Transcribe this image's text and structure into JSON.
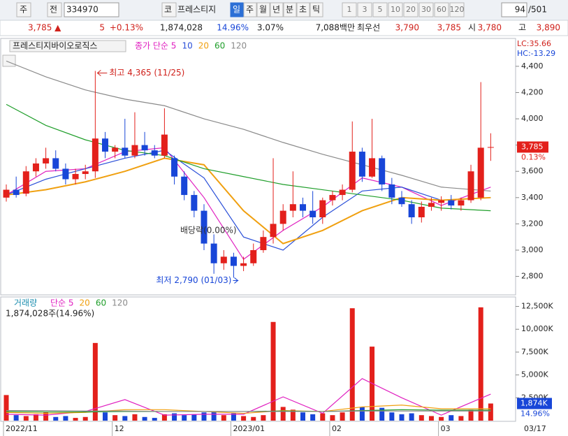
{
  "toolbar": {
    "market": "주",
    "mode": "전",
    "code": "334970",
    "exchange": "코",
    "name": "프레스티지",
    "periods": [
      "일",
      "주",
      "월",
      "년",
      "분",
      "초",
      "틱"
    ],
    "intervals": [
      "1",
      "3",
      "5",
      "10",
      "20",
      "30",
      "60",
      "120"
    ],
    "count": "94",
    "total": "/501"
  },
  "quote": {
    "price": "3,785 ▲",
    "change": "5",
    "change_pct": "+0.13%",
    "volume": "1,874,028",
    "volume_pct": "14.96%",
    "turnover_pct": "3.07%",
    "amount": "7,088백만",
    "best_label": "최우선",
    "ask": "3,790",
    "bid": "3,785",
    "open_label": "시",
    "open": "3,780",
    "high_label": "고",
    "high": "3,890"
  },
  "chart_data": [
    {
      "type": "candlestick",
      "title": "프레스티지바이오로직스",
      "up_color": "#e3201b",
      "down_color": "#1846d8",
      "candles": [
        [
          3400,
          3500,
          3370,
          3460
        ],
        [
          3460,
          3560,
          3400,
          3420
        ],
        [
          3430,
          3640,
          3410,
          3600
        ],
        [
          3600,
          3700,
          3560,
          3660
        ],
        [
          3660,
          3780,
          3620,
          3700
        ],
        [
          3700,
          3760,
          3600,
          3620
        ],
        [
          3620,
          3660,
          3500,
          3540
        ],
        [
          3540,
          3620,
          3500,
          3580
        ],
        [
          3580,
          3650,
          3540,
          3600
        ],
        [
          3600,
          4365,
          3550,
          3850
        ],
        [
          3850,
          3900,
          3700,
          3750
        ],
        [
          3750,
          3800,
          3700,
          3780
        ],
        [
          3780,
          4000,
          3700,
          3720
        ],
        [
          3720,
          4050,
          3700,
          3800
        ],
        [
          3800,
          3900,
          3720,
          3760
        ],
        [
          3760,
          3800,
          3700,
          3720
        ],
        [
          3720,
          4080,
          3700,
          3880
        ],
        [
          3700,
          3720,
          3500,
          3560
        ],
        [
          3560,
          3600,
          3380,
          3420
        ],
        [
          3420,
          3450,
          3250,
          3300
        ],
        [
          3300,
          3350,
          3000,
          3050
        ],
        [
          3050,
          3120,
          2820,
          2900
        ],
        [
          2900,
          3000,
          2850,
          2950
        ],
        [
          2950,
          2980,
          2790,
          2880
        ],
        [
          2880,
          2950,
          2840,
          2900
        ],
        [
          2900,
          3050,
          2880,
          3000
        ],
        [
          3000,
          3150,
          2980,
          3100
        ],
        [
          3100,
          3700,
          3050,
          3200
        ],
        [
          3200,
          3350,
          3150,
          3300
        ],
        [
          3300,
          3600,
          3250,
          3350
        ],
        [
          3350,
          3400,
          3250,
          3300
        ],
        [
          3300,
          3450,
          3200,
          3250
        ],
        [
          3250,
          3400,
          3200,
          3380
        ],
        [
          3380,
          3450,
          3340,
          3420
        ],
        [
          3420,
          3500,
          3380,
          3460
        ],
        [
          3460,
          3980,
          3440,
          3750
        ],
        [
          3750,
          3780,
          3520,
          3560
        ],
        [
          3560,
          4000,
          3550,
          3700
        ],
        [
          3700,
          3720,
          3450,
          3500
        ],
        [
          3500,
          3550,
          3350,
          3400
        ],
        [
          3400,
          3450,
          3330,
          3350
        ],
        [
          3350,
          3380,
          3200,
          3250
        ],
        [
          3250,
          3370,
          3210,
          3330
        ],
        [
          3330,
          3400,
          3300,
          3360
        ],
        [
          3360,
          3410,
          3300,
          3380
        ],
        [
          3380,
          3420,
          3310,
          3340
        ],
        [
          3340,
          3400,
          3300,
          3380
        ],
        [
          3380,
          3650,
          3360,
          3600
        ],
        [
          3400,
          4280,
          3380,
          3780
        ],
        [
          3780,
          3890,
          3680,
          3785
        ]
      ],
      "ylim": [
        2670,
        4575
      ],
      "yticks": [
        {
          "value": 2800,
          "label": "2,800"
        },
        {
          "value": 3000,
          "label": "3,000"
        },
        {
          "value": 3200,
          "label": "3,200"
        },
        {
          "value": 3400,
          "label": "3,400"
        },
        {
          "value": 3600,
          "label": "3,600"
        },
        {
          "value": 3800,
          "label": "3,800"
        },
        {
          "value": 4000,
          "label": "4,000"
        },
        {
          "value": 4200,
          "label": "4,200"
        },
        {
          "value": 4400,
          "label": "4,400"
        }
      ],
      "series": [
        {
          "name": "종가 단순 5",
          "color": "#e020c0",
          "x": [
            0,
            4,
            8,
            12,
            16,
            20,
            24,
            28,
            32,
            36,
            40,
            44,
            49
          ],
          "values": [
            3420,
            3600,
            3620,
            3750,
            3780,
            3400,
            2930,
            3150,
            3330,
            3550,
            3480,
            3340,
            3480
          ]
        },
        {
          "name": "10",
          "color": "#2a4fd8",
          "x": [
            0,
            4,
            8,
            12,
            16,
            20,
            24,
            28,
            32,
            36,
            40,
            44,
            49
          ],
          "values": [
            3420,
            3540,
            3620,
            3700,
            3760,
            3550,
            3100,
            3000,
            3250,
            3450,
            3480,
            3380,
            3400
          ]
        },
        {
          "name": "20",
          "color": "#f0a010",
          "x": [
            0,
            4,
            8,
            12,
            16,
            20,
            24,
            28,
            32,
            36,
            40,
            44,
            49
          ],
          "values": [
            3420,
            3460,
            3520,
            3600,
            3700,
            3650,
            3300,
            3050,
            3150,
            3300,
            3400,
            3380,
            3400
          ]
        },
        {
          "name": "60",
          "color": "#1f9e2a",
          "x": [
            0,
            4,
            8,
            12,
            16,
            20,
            24,
            28,
            32,
            36,
            40,
            44,
            49
          ],
          "values": [
            4110,
            3950,
            3840,
            3760,
            3720,
            3620,
            3560,
            3500,
            3460,
            3420,
            3380,
            3320,
            3300
          ]
        },
        {
          "name": "120",
          "color": "#8a8a8a",
          "x": [
            0,
            4,
            8,
            12,
            16,
            20,
            24,
            28,
            32,
            36,
            40,
            44,
            49
          ],
          "values": [
            4440,
            4320,
            4220,
            4150,
            4100,
            4000,
            3920,
            3820,
            3730,
            3650,
            3570,
            3480,
            3450
          ]
        }
      ],
      "annotations": {
        "high": "최고 4,365 (11/25)",
        "low": "최저 2,790 (01/03)",
        "dividend": "배당락(0.00%)"
      },
      "indicators": [
        "LC:35.66",
        "HC:-13.29"
      ],
      "last": {
        "value": 3785,
        "label": "3,785",
        "change": "0.13%"
      }
    },
    {
      "type": "bar",
      "title": "거래량",
      "subtitle": "1,874,028주(14.96%)",
      "categories": [
        "2022/11",
        null,
        null,
        null,
        null,
        null,
        null,
        null,
        null,
        null,
        null,
        "12",
        null,
        null,
        null,
        null,
        null,
        null,
        null,
        null,
        null,
        null,
        null,
        "2023/01",
        null,
        null,
        null,
        null,
        null,
        null,
        null,
        null,
        null,
        "02",
        null,
        null,
        null,
        null,
        null,
        null,
        null,
        null,
        null,
        null,
        "03",
        null,
        null,
        null,
        null,
        null
      ],
      "values": [
        2800,
        600,
        500,
        700,
        900,
        400,
        500,
        300,
        400,
        8500,
        900,
        600,
        500,
        700,
        400,
        300,
        700,
        800,
        600,
        700,
        900,
        1000,
        600,
        800,
        500,
        400,
        600,
        10800,
        1500,
        1200,
        900,
        700,
        800,
        600,
        900,
        12300,
        1500,
        8100,
        1400,
        900,
        700,
        800,
        600,
        500,
        400,
        600,
        500,
        1200,
        12400,
        1874
      ],
      "ylim": [
        0,
        13000
      ],
      "yticks": [
        {
          "value": 2500,
          "label": "2,500K"
        },
        {
          "value": 5000,
          "label": "5,000K"
        },
        {
          "value": 7500,
          "label": "7,500K"
        },
        {
          "value": 10000,
          "label": "10,000K"
        },
        {
          "value": 12500,
          "label": "12,500K"
        }
      ],
      "series": [
        {
          "name": "단순 5",
          "color": "#e020c0",
          "x": [
            0,
            4,
            8,
            12,
            16,
            20,
            24,
            28,
            32,
            36,
            40,
            44,
            49
          ],
          "values": [
            700,
            600,
            1000,
            2300,
            600,
            700,
            700,
            2600,
            800,
            4600,
            2500,
            600,
            2900
          ]
        },
        {
          "name": "20",
          "color": "#f0a010",
          "x": [
            0,
            4,
            8,
            12,
            16,
            20,
            24,
            28,
            32,
            36,
            40,
            44,
            49
          ],
          "values": [
            900,
            800,
            900,
            1200,
            1200,
            1000,
            800,
            1100,
            1000,
            1500,
            1700,
            1300,
            1300
          ]
        },
        {
          "name": "60",
          "color": "#1f9e2a",
          "x": [
            0,
            4,
            8,
            12,
            16,
            20,
            24,
            28,
            32,
            36,
            40,
            44,
            49
          ],
          "values": [
            1000,
            950,
            950,
            1000,
            1000,
            1000,
            1000,
            1050,
            1000,
            1100,
            1200,
            1150,
            1150
          ]
        },
        {
          "name": "120",
          "color": "#8a8a8a",
          "x": [
            0,
            4,
            8,
            12,
            16,
            20,
            24,
            28,
            32,
            36,
            40,
            44,
            49
          ],
          "values": [
            1100,
            1100,
            1050,
            1050,
            1000,
            1000,
            1000,
            1000,
            1000,
            1050,
            1050,
            1050,
            1050
          ]
        }
      ],
      "last": {
        "value": 1874,
        "label": "1,874K",
        "pct": "14.96%"
      },
      "date_label": "03/17"
    }
  ]
}
